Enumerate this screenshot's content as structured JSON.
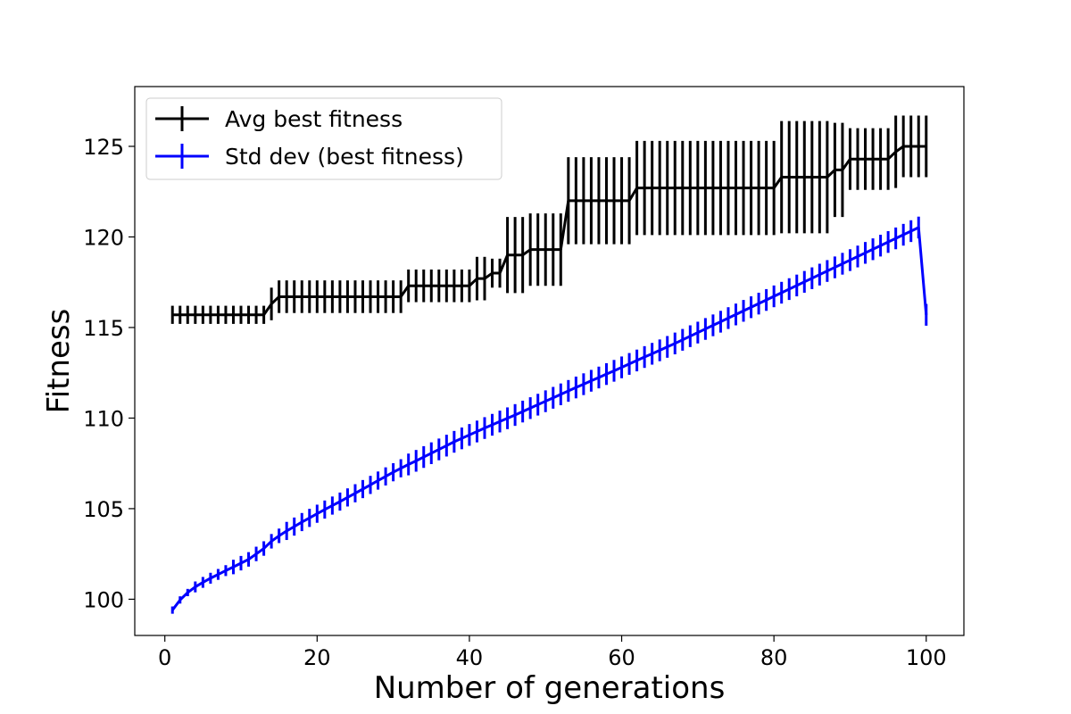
{
  "chart_data": {
    "type": "line",
    "xlabel": "Number of generations",
    "ylabel": "Fitness",
    "xlim": [
      -3.95,
      104.95
    ],
    "ylim": [
      98,
      128.3
    ],
    "xticks": [
      0,
      20,
      40,
      60,
      80,
      100
    ],
    "yticks": [
      100,
      105,
      110,
      115,
      120,
      125
    ],
    "grid": false,
    "legend_position": "top-left",
    "error_bars": true,
    "series": [
      {
        "name": "Avg best fitness",
        "color": "#000000",
        "x": [
          1,
          2,
          3,
          4,
          5,
          6,
          7,
          8,
          9,
          10,
          11,
          12,
          13,
          14,
          15,
          16,
          17,
          18,
          19,
          20,
          21,
          22,
          23,
          24,
          25,
          26,
          27,
          28,
          29,
          30,
          31,
          32,
          33,
          34,
          35,
          36,
          37,
          38,
          39,
          40,
          41,
          42,
          43,
          44,
          45,
          46,
          47,
          48,
          49,
          50,
          51,
          52,
          53,
          54,
          55,
          56,
          57,
          58,
          59,
          60,
          61,
          62,
          63,
          64,
          65,
          66,
          67,
          68,
          69,
          70,
          71,
          72,
          73,
          74,
          75,
          76,
          77,
          78,
          79,
          80,
          81,
          82,
          83,
          84,
          85,
          86,
          87,
          88,
          89,
          90,
          91,
          92,
          93,
          94,
          95,
          96,
          97,
          98,
          99,
          100
        ],
        "y": [
          115.7,
          115.7,
          115.7,
          115.7,
          115.7,
          115.7,
          115.7,
          115.7,
          115.7,
          115.7,
          115.7,
          115.7,
          115.7,
          116.3,
          116.7,
          116.7,
          116.7,
          116.7,
          116.7,
          116.7,
          116.7,
          116.7,
          116.7,
          116.7,
          116.7,
          116.7,
          116.7,
          116.7,
          116.7,
          116.7,
          116.7,
          117.3,
          117.3,
          117.3,
          117.3,
          117.3,
          117.3,
          117.3,
          117.3,
          117.3,
          117.7,
          117.7,
          118.0,
          118.0,
          119.0,
          119.0,
          119.0,
          119.3,
          119.3,
          119.3,
          119.3,
          119.3,
          122.0,
          122.0,
          122.0,
          122.0,
          122.0,
          122.0,
          122.0,
          122.0,
          122.0,
          122.7,
          122.7,
          122.7,
          122.7,
          122.7,
          122.7,
          122.7,
          122.7,
          122.7,
          122.7,
          122.7,
          122.7,
          122.7,
          122.7,
          122.7,
          122.7,
          122.7,
          122.7,
          122.7,
          123.3,
          123.3,
          123.3,
          123.3,
          123.3,
          123.3,
          123.3,
          123.7,
          123.7,
          124.3,
          124.3,
          124.3,
          124.3,
          124.3,
          124.3,
          124.7,
          125.0,
          125.0,
          125.0,
          125.0
        ],
        "yerr": [
          0.5,
          0.5,
          0.5,
          0.5,
          0.5,
          0.5,
          0.5,
          0.5,
          0.5,
          0.5,
          0.5,
          0.5,
          0.5,
          0.9,
          0.9,
          0.9,
          0.9,
          0.9,
          0.9,
          0.9,
          0.9,
          0.9,
          0.9,
          0.9,
          0.9,
          0.9,
          0.9,
          0.9,
          0.9,
          0.9,
          0.9,
          0.9,
          0.9,
          0.9,
          0.9,
          0.9,
          0.9,
          0.9,
          0.9,
          0.9,
          1.2,
          1.2,
          0.8,
          0.8,
          2.1,
          2.1,
          2.1,
          2.0,
          2.0,
          2.0,
          2.0,
          2.0,
          2.4,
          2.4,
          2.4,
          2.4,
          2.4,
          2.4,
          2.4,
          2.4,
          2.4,
          2.6,
          2.6,
          2.6,
          2.6,
          2.6,
          2.6,
          2.6,
          2.6,
          2.6,
          2.6,
          2.6,
          2.6,
          2.6,
          2.6,
          2.6,
          2.6,
          2.6,
          2.6,
          2.6,
          3.1,
          3.1,
          3.1,
          3.1,
          3.1,
          3.1,
          3.1,
          2.6,
          2.6,
          1.7,
          1.7,
          1.7,
          1.7,
          1.7,
          1.7,
          2.0,
          1.7,
          1.7,
          1.7,
          1.7
        ]
      },
      {
        "name": "Std dev (best fitness)",
        "color": "#0000ff",
        "x": [
          1,
          2,
          3,
          4,
          5,
          6,
          7,
          8,
          9,
          10,
          11,
          12,
          13,
          14,
          15,
          16,
          17,
          18,
          19,
          20,
          21,
          22,
          23,
          24,
          25,
          26,
          27,
          28,
          29,
          30,
          31,
          32,
          33,
          34,
          35,
          36,
          37,
          38,
          39,
          40,
          41,
          42,
          43,
          44,
          45,
          46,
          47,
          48,
          49,
          50,
          51,
          52,
          53,
          54,
          55,
          56,
          57,
          58,
          59,
          60,
          61,
          62,
          63,
          64,
          65,
          66,
          67,
          68,
          69,
          70,
          71,
          72,
          73,
          74,
          75,
          76,
          77,
          78,
          79,
          80,
          81,
          82,
          83,
          84,
          85,
          86,
          87,
          88,
          89,
          90,
          91,
          92,
          93,
          94,
          95,
          96,
          97,
          98,
          99,
          100
        ],
        "y": [
          99.4,
          99.96,
          100.37,
          100.68,
          100.93,
          101.16,
          101.37,
          101.58,
          101.78,
          101.99,
          102.2,
          102.5,
          102.8,
          103.2,
          103.5,
          103.77,
          104.01,
          104.26,
          104.49,
          104.72,
          104.95,
          105.17,
          105.39,
          105.62,
          105.85,
          106.08,
          106.31,
          106.55,
          106.78,
          107.01,
          107.23,
          107.44,
          107.64,
          107.85,
          108.06,
          108.27,
          108.48,
          108.69,
          108.88,
          109.07,
          109.26,
          109.45,
          109.63,
          109.81,
          109.99,
          110.17,
          110.36,
          110.55,
          110.74,
          110.93,
          111.12,
          111.31,
          111.5,
          111.69,
          111.87,
          112.06,
          112.24,
          112.43,
          112.61,
          112.8,
          112.99,
          113.18,
          113.37,
          113.55,
          113.74,
          113.93,
          114.12,
          114.32,
          114.52,
          114.72,
          114.92,
          115.12,
          115.32,
          115.52,
          115.72,
          115.92,
          116.12,
          116.32,
          116.52,
          116.72,
          116.92,
          117.12,
          117.32,
          117.52,
          117.72,
          117.92,
          118.12,
          118.32,
          118.52,
          118.72,
          118.92,
          119.12,
          119.32,
          119.52,
          119.72,
          119.92,
          120.12,
          120.32,
          120.52,
          115.7
        ],
        "yerr": [
          0.2,
          0.2,
          0.2,
          0.3,
          0.3,
          0.3,
          0.3,
          0.3,
          0.4,
          0.4,
          0.4,
          0.4,
          0.4,
          0.4,
          0.4,
          0.5,
          0.5,
          0.5,
          0.5,
          0.5,
          0.5,
          0.5,
          0.5,
          0.5,
          0.5,
          0.5,
          0.5,
          0.5,
          0.5,
          0.5,
          0.5,
          0.6,
          0.6,
          0.6,
          0.6,
          0.6,
          0.6,
          0.6,
          0.6,
          0.6,
          0.6,
          0.6,
          0.6,
          0.6,
          0.6,
          0.6,
          0.6,
          0.6,
          0.6,
          0.6,
          0.6,
          0.6,
          0.6,
          0.6,
          0.6,
          0.6,
          0.6,
          0.6,
          0.6,
          0.6,
          0.6,
          0.6,
          0.6,
          0.6,
          0.6,
          0.6,
          0.6,
          0.6,
          0.6,
          0.6,
          0.6,
          0.6,
          0.6,
          0.6,
          0.6,
          0.6,
          0.6,
          0.6,
          0.6,
          0.6,
          0.6,
          0.6,
          0.6,
          0.6,
          0.6,
          0.6,
          0.6,
          0.6,
          0.6,
          0.6,
          0.6,
          0.6,
          0.6,
          0.6,
          0.6,
          0.6,
          0.6,
          0.6,
          0.6,
          0.6
        ]
      }
    ]
  }
}
